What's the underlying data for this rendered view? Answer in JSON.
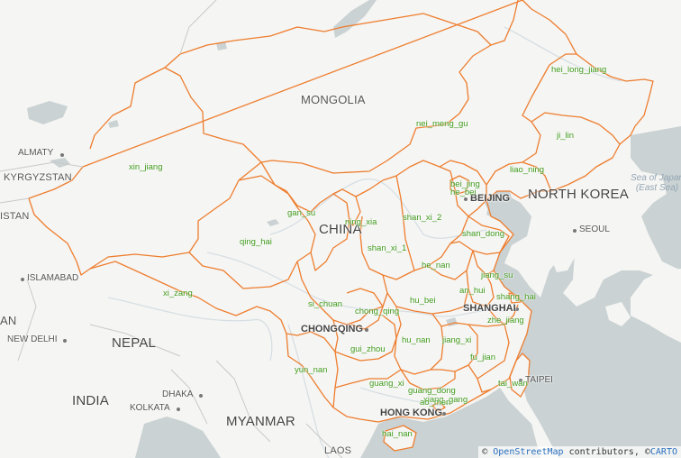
{
  "colors": {
    "land": "#f5f5f3",
    "water": "#cad2d3",
    "border": "#ee7d2e",
    "province_label": "#3f9a1b",
    "river": "#d2dbe0"
  },
  "countries": [
    {
      "id": "mongolia",
      "text": "MONGOLIA"
    },
    {
      "id": "china",
      "text": "CHINA"
    },
    {
      "id": "north-korea",
      "text": "NORTH KOREA"
    },
    {
      "id": "kyrgyzstan",
      "text": "KYRGYZSTAN"
    },
    {
      "id": "stan",
      "text": "ISTAN"
    },
    {
      "id": "nepal",
      "text": "NEPAL"
    },
    {
      "id": "india",
      "text": "INDIA"
    },
    {
      "id": "myanmar",
      "text": "MYANMAR"
    },
    {
      "id": "laos",
      "text": "LAOS"
    },
    {
      "id": "an",
      "text": "AN"
    }
  ],
  "cities": [
    {
      "id": "almaty",
      "text": "ALMATY"
    },
    {
      "id": "islamabad",
      "text": "ISLAMABAD"
    },
    {
      "id": "new-delhi",
      "text": "NEW DELHI"
    },
    {
      "id": "dhaka",
      "text": "DHAKA"
    },
    {
      "id": "kolkata",
      "text": "KOLKATA"
    },
    {
      "id": "beijing",
      "text": "BEIJING"
    },
    {
      "id": "seoul",
      "text": "SEOUL"
    },
    {
      "id": "shanghai",
      "text": "SHANGHAI"
    },
    {
      "id": "chongqing",
      "text": "CHONGQING"
    },
    {
      "id": "taipei",
      "text": "TAIPEI"
    },
    {
      "id": "hong-kong",
      "text": "HONG KONG"
    }
  ],
  "sea_label": {
    "line1": "Sea of Japan",
    "line2": "(East Sea)"
  },
  "provinces": [
    {
      "id": "hei-long-jiang",
      "text": "hei_long_jiang"
    },
    {
      "id": "ji-lin",
      "text": "ji_lin"
    },
    {
      "id": "liao-ning",
      "text": "liao_ning"
    },
    {
      "id": "nei-meng-gu",
      "text": "nei_meng_gu"
    },
    {
      "id": "xin-jiang",
      "text": "xin_jiang"
    },
    {
      "id": "bei-jing",
      "text": "bei_jing"
    },
    {
      "id": "he-bei",
      "text": "he_bei"
    },
    {
      "id": "gan-su",
      "text": "gan_su"
    },
    {
      "id": "ning-xia",
      "text": "ning_xia"
    },
    {
      "id": "shan-xi-2",
      "text": "shan_xi_2"
    },
    {
      "id": "shan-dong",
      "text": "shan_dong"
    },
    {
      "id": "qing-hai",
      "text": "qing_hai"
    },
    {
      "id": "shan-xi-1",
      "text": "shan_xi_1"
    },
    {
      "id": "he-nan",
      "text": "he_nan"
    },
    {
      "id": "jiang-su",
      "text": "jiang_su"
    },
    {
      "id": "an-hui",
      "text": "an_hui"
    },
    {
      "id": "shang-hai",
      "text": "shang_hai"
    },
    {
      "id": "xi-zang",
      "text": "xi_zang"
    },
    {
      "id": "si-chuan",
      "text": "si_chuan"
    },
    {
      "id": "hu-bei",
      "text": "hu_bei"
    },
    {
      "id": "chong-qing",
      "text": "chong_qing"
    },
    {
      "id": "zhe-jiang",
      "text": "zhe_jiang"
    },
    {
      "id": "hu-nan",
      "text": "hu_nan"
    },
    {
      "id": "jiang-xi",
      "text": "jiang_xi"
    },
    {
      "id": "gui-zhou",
      "text": "gui_zhou"
    },
    {
      "id": "fu-jian",
      "text": "fu_jian"
    },
    {
      "id": "yun-nan",
      "text": "yun_nan"
    },
    {
      "id": "tai-wan",
      "text": "tai_wan"
    },
    {
      "id": "guang-xi",
      "text": "guang_xi"
    },
    {
      "id": "guang-dong",
      "text": "guang_dong"
    },
    {
      "id": "xiang-gang",
      "text": "xiang_gang"
    },
    {
      "id": "ao-men",
      "text": "ao_men"
    },
    {
      "id": "hai-nan",
      "text": "hai_nan"
    }
  ],
  "attribution": {
    "prefix": "©",
    "osm_link": "OpenStreetMap",
    "contributors": "contributors, ©",
    "carto_link": "CARTO"
  }
}
